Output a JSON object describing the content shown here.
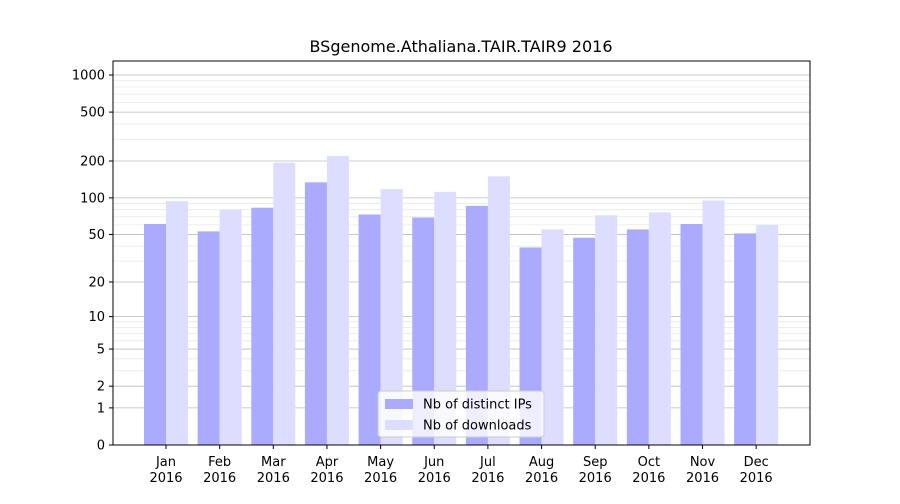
{
  "chart_data": {
    "type": "bar",
    "title": "BSgenome.Athaliana.TAIR.TAIR9 2016",
    "xlabel": "",
    "ylabel": "",
    "y_scale": "log(1+y)",
    "ylim": [
      0,
      1300
    ],
    "y_ticks": [
      0,
      1,
      2,
      5,
      10,
      20,
      50,
      100,
      200,
      500,
      1000
    ],
    "y_tick_labels": [
      "0",
      "1",
      "2",
      "5",
      "10",
      "20",
      "50",
      "100",
      "200",
      "500",
      "1000"
    ],
    "grid": true,
    "legend_placement": "bottom-center",
    "categories": [
      "Jan\n2016",
      "Feb\n2016",
      "Mar\n2016",
      "Apr\n2016",
      "May\n2016",
      "Jun\n2016",
      "Jul\n2016",
      "Aug\n2016",
      "Sep\n2016",
      "Oct\n2016",
      "Nov\n2016",
      "Dec\n2016"
    ],
    "series": [
      {
        "name": "Nb of distinct IPs",
        "color": "#aaaaff",
        "values": [
          61,
          53,
          83,
          134,
          73,
          69,
          86,
          39,
          47,
          55,
          61,
          51
        ]
      },
      {
        "name": "Nb of downloads",
        "color": "#ddddff",
        "values": [
          94,
          80,
          194,
          220,
          118,
          112,
          150,
          55,
          72,
          76,
          95,
          60
        ]
      }
    ]
  }
}
